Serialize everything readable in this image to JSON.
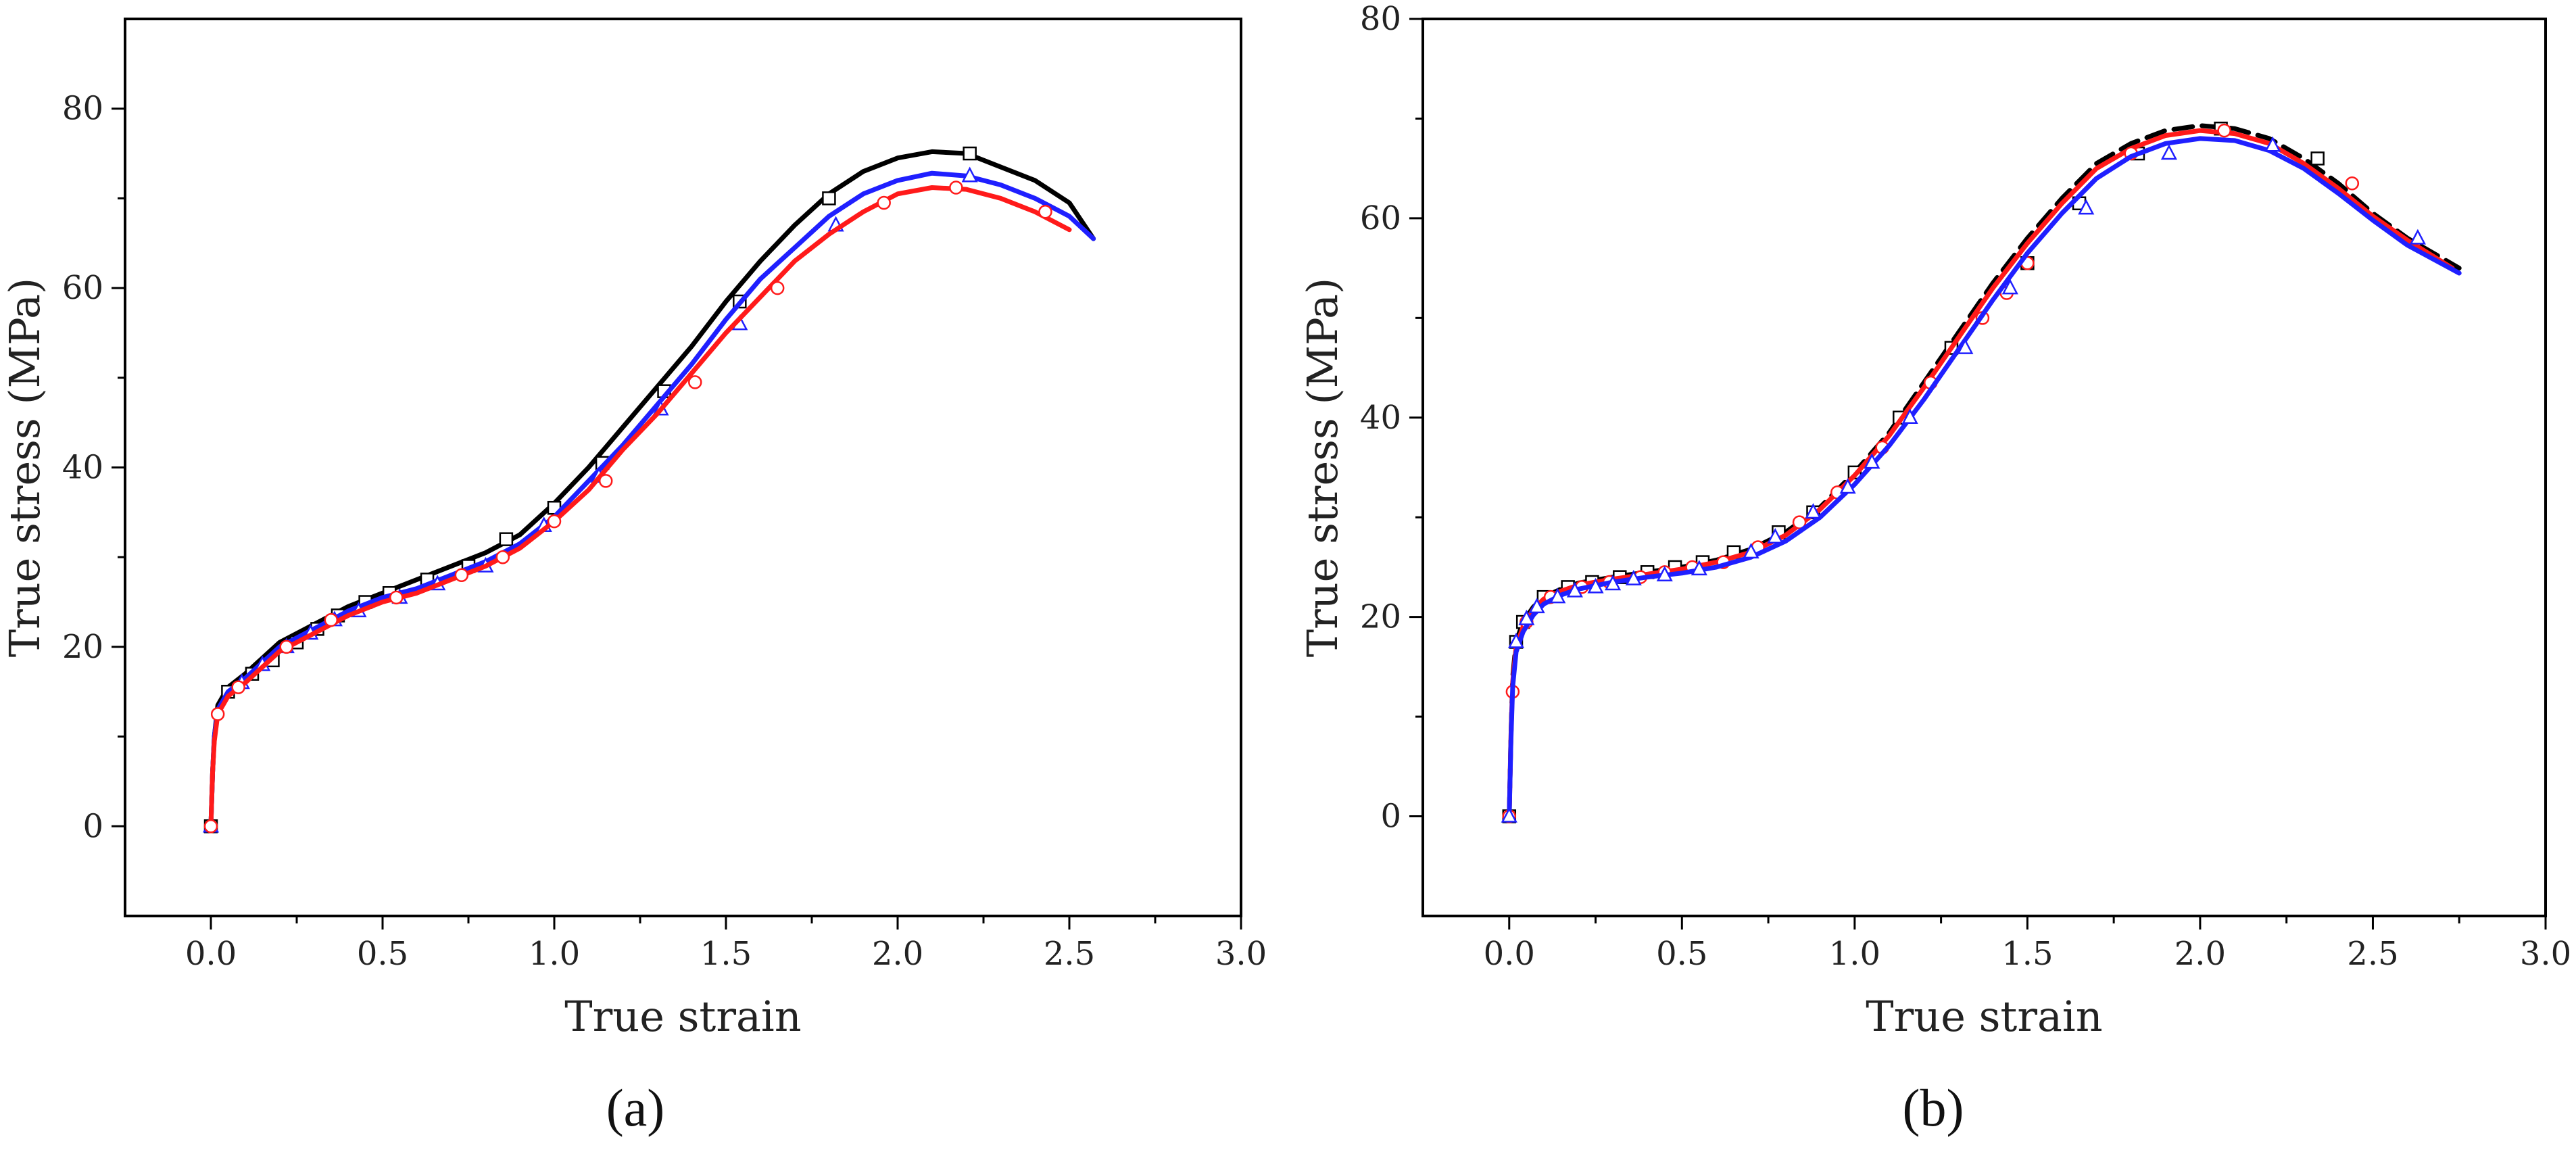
{
  "figure": {
    "panels": [
      "(a)",
      "(b)"
    ]
  },
  "chart_data": [
    {
      "type": "line",
      "panel_label": "(a)",
      "title": "",
      "xlabel": "True strain",
      "ylabel": "True stress  (MPa)",
      "xlim": [
        -0.25,
        3.0
      ],
      "ylim": [
        -10,
        90
      ],
      "xticks": [
        0.0,
        0.5,
        1.0,
        1.5,
        2.0,
        2.5,
        3.0
      ],
      "xtick_labels": [
        "0.0",
        "0.5",
        "1.0",
        "1.5",
        "2.0",
        "2.5",
        "3.0"
      ],
      "yticks": [
        0,
        20,
        40,
        60,
        80
      ],
      "ytick_labels": [
        "0",
        "20",
        "40",
        "60",
        "80"
      ],
      "grid": false,
      "series": [
        {
          "name": "black-square",
          "color": "#000000",
          "marker": "square",
          "dashed": false,
          "x": [
            0.0,
            0.005,
            0.01,
            0.02,
            0.05,
            0.1,
            0.2,
            0.3,
            0.4,
            0.5,
            0.6,
            0.7,
            0.8,
            0.9,
            1.0,
            1.1,
            1.2,
            1.3,
            1.4,
            1.5,
            1.6,
            1.7,
            1.8,
            1.9,
            2.0,
            2.1,
            2.2,
            2.3,
            2.4,
            2.5,
            2.57
          ],
          "y": [
            0,
            6,
            10,
            13.5,
            15.5,
            17,
            20.5,
            22.5,
            24.5,
            26,
            27.5,
            29,
            30.5,
            32.5,
            36,
            40,
            44.5,
            49,
            53.5,
            58.5,
            63,
            67,
            70.5,
            73,
            74.5,
            75.2,
            75,
            73.5,
            72,
            69.5,
            65.5
          ],
          "marker_x": [
            0.0,
            0.05,
            0.12,
            0.18,
            0.25,
            0.31,
            0.37,
            0.45,
            0.52,
            0.63,
            0.75,
            0.86,
            1.0,
            1.14,
            1.32,
            1.54,
            1.8,
            2.21
          ],
          "marker_y": [
            0,
            15,
            17,
            18.5,
            20.5,
            22,
            23.5,
            25,
            26,
            27.5,
            29,
            32,
            35.5,
            40.5,
            48.5,
            58.5,
            70,
            75
          ]
        },
        {
          "name": "blue-triangle",
          "color": "#1f1fff",
          "marker": "triangle",
          "dashed": false,
          "x": [
            0.0,
            0.005,
            0.01,
            0.02,
            0.05,
            0.1,
            0.2,
            0.3,
            0.4,
            0.5,
            0.6,
            0.7,
            0.8,
            0.9,
            1.0,
            1.1,
            1.2,
            1.3,
            1.4,
            1.5,
            1.6,
            1.7,
            1.8,
            1.9,
            2.0,
            2.1,
            2.2,
            2.3,
            2.4,
            2.5,
            2.57
          ],
          "y": [
            0,
            6,
            10,
            13,
            15,
            16.5,
            20,
            22,
            24,
            25.5,
            26.5,
            28,
            29.5,
            31.5,
            34.5,
            38.5,
            42.5,
            47,
            51.5,
            56.5,
            61,
            64.5,
            68,
            70.5,
            72,
            72.8,
            72.5,
            71.5,
            70,
            68,
            65.5
          ],
          "marker_x": [
            0.0,
            0.09,
            0.15,
            0.22,
            0.29,
            0.36,
            0.43,
            0.55,
            0.66,
            0.8,
            0.97,
            1.13,
            1.31,
            1.54,
            1.82,
            2.21
          ],
          "marker_y": [
            0,
            16,
            18,
            20,
            21.5,
            23,
            24,
            25.5,
            27,
            29,
            33.5,
            39,
            46.5,
            56,
            67,
            72.5
          ]
        },
        {
          "name": "red-circle",
          "color": "#ff1a1a",
          "marker": "circle",
          "dashed": false,
          "x": [
            0.0,
            0.005,
            0.01,
            0.02,
            0.05,
            0.1,
            0.2,
            0.3,
            0.4,
            0.5,
            0.6,
            0.7,
            0.8,
            0.9,
            1.0,
            1.1,
            1.2,
            1.3,
            1.4,
            1.5,
            1.6,
            1.7,
            1.8,
            1.9,
            2.0,
            2.1,
            2.2,
            2.3,
            2.4,
            2.5
          ],
          "y": [
            0,
            6,
            9.5,
            12.5,
            14.5,
            16,
            19.5,
            21.5,
            23.5,
            25,
            26,
            27.5,
            29,
            31,
            34,
            37.5,
            42,
            46,
            50.5,
            55,
            59,
            63,
            66,
            68.5,
            70.5,
            71.2,
            71,
            70,
            68.5,
            66.5
          ],
          "marker_x": [
            0.0,
            0.02,
            0.08,
            0.22,
            0.35,
            0.54,
            0.73,
            0.85,
            1.0,
            1.15,
            1.41,
            1.65,
            1.96,
            2.17,
            2.43
          ],
          "marker_y": [
            0,
            12.5,
            15.5,
            20,
            23,
            25.5,
            28,
            30,
            34,
            38.5,
            49.5,
            60,
            69.5,
            71.2,
            68.5
          ]
        }
      ]
    },
    {
      "type": "line",
      "panel_label": "(b)",
      "title": "",
      "xlabel": "True strain",
      "ylabel": "True stress  (MPa)",
      "xlim": [
        -0.25,
        3.0
      ],
      "ylim": [
        -10,
        80
      ],
      "xticks": [
        0.0,
        0.5,
        1.0,
        1.5,
        2.0,
        2.5,
        3.0
      ],
      "xtick_labels": [
        "0.0",
        "0.5",
        "1.0",
        "1.5",
        "2.0",
        "2.5",
        "3.0"
      ],
      "yticks": [
        0,
        20,
        40,
        60,
        80
      ],
      "ytick_labels": [
        "0",
        "20",
        "40",
        "60",
        "80"
      ],
      "grid": false,
      "series": [
        {
          "name": "black-square",
          "color": "#000000",
          "marker": "square",
          "dashed": true,
          "x": [
            0.0,
            0.005,
            0.01,
            0.02,
            0.04,
            0.07,
            0.1,
            0.15,
            0.2,
            0.3,
            0.4,
            0.5,
            0.6,
            0.7,
            0.8,
            0.9,
            1.0,
            1.1,
            1.2,
            1.3,
            1.4,
            1.5,
            1.6,
            1.7,
            1.8,
            1.9,
            2.0,
            2.1,
            2.2,
            2.3,
            2.4,
            2.5,
            2.6,
            2.75
          ],
          "y": [
            0,
            8,
            14,
            17.5,
            19.5,
            21,
            22,
            22.8,
            23.4,
            24,
            24.5,
            25,
            25.7,
            26.8,
            28.5,
            31,
            34.5,
            38.5,
            43.5,
            48.5,
            53.5,
            58,
            62,
            65.5,
            67.5,
            68.8,
            69.3,
            69,
            68,
            66,
            63.5,
            60.5,
            58,
            55
          ],
          "marker_x": [
            0.0,
            0.02,
            0.04,
            0.1,
            0.17,
            0.24,
            0.32,
            0.4,
            0.48,
            0.56,
            0.65,
            0.78,
            0.88,
            1.0,
            1.13,
            1.28,
            1.5,
            1.65,
            1.82,
            2.06,
            2.34
          ],
          "marker_y": [
            0,
            17.5,
            19.5,
            22,
            23,
            23.5,
            24,
            24.5,
            25,
            25.5,
            26.5,
            28.5,
            30.5,
            34.5,
            40,
            47,
            55.5,
            61.5,
            66.5,
            69,
            66
          ]
        },
        {
          "name": "red-circle",
          "color": "#ff1a1a",
          "marker": "circle",
          "dashed": false,
          "x": [
            0.0,
            0.005,
            0.01,
            0.02,
            0.04,
            0.07,
            0.1,
            0.15,
            0.2,
            0.3,
            0.4,
            0.5,
            0.6,
            0.7,
            0.8,
            0.9,
            1.0,
            1.1,
            1.2,
            1.3,
            1.4,
            1.5,
            1.6,
            1.7,
            1.8,
            1.9,
            2.0,
            2.1,
            2.2,
            2.3,
            2.4,
            2.5,
            2.6,
            2.73
          ],
          "y": [
            0,
            8,
            13.5,
            17,
            19,
            20.8,
            21.8,
            22.6,
            23.2,
            23.8,
            24.3,
            24.8,
            25.5,
            26.5,
            28.2,
            30.8,
            34.2,
            38.2,
            43,
            48,
            53,
            57.5,
            61.5,
            65,
            67,
            68.3,
            68.8,
            68.5,
            67.5,
            65.5,
            63,
            60.2,
            57.8,
            55
          ],
          "marker_x": [
            0.0,
            0.01,
            0.05,
            0.12,
            0.21,
            0.29,
            0.38,
            0.45,
            0.53,
            0.62,
            0.72,
            0.84,
            0.95,
            1.08,
            1.22,
            1.37,
            1.44,
            1.5,
            1.8,
            2.07,
            2.44
          ],
          "marker_y": [
            0,
            12.5,
            19.5,
            22,
            23,
            23.5,
            24,
            24.5,
            25,
            25.5,
            27,
            29.5,
            32.5,
            37,
            43.5,
            50,
            52.5,
            55.5,
            66.5,
            68.8,
            63.5
          ]
        },
        {
          "name": "blue-triangle",
          "color": "#1f1fff",
          "marker": "triangle",
          "dashed": false,
          "x": [
            0.0,
            0.005,
            0.01,
            0.02,
            0.04,
            0.07,
            0.1,
            0.15,
            0.2,
            0.3,
            0.4,
            0.5,
            0.6,
            0.7,
            0.8,
            0.9,
            1.0,
            1.1,
            1.2,
            1.3,
            1.4,
            1.5,
            1.6,
            1.7,
            1.8,
            1.9,
            2.0,
            2.1,
            2.2,
            2.3,
            2.4,
            2.5,
            2.6,
            2.75
          ],
          "y": [
            0,
            7.5,
            13,
            16.5,
            18.5,
            20.2,
            21.3,
            22.2,
            22.8,
            23.5,
            24,
            24.4,
            25,
            26,
            27.6,
            30,
            33.3,
            37.2,
            41.8,
            46.8,
            51.8,
            56.5,
            60.5,
            64,
            66.2,
            67.5,
            68,
            67.8,
            66.8,
            65,
            62.5,
            59.8,
            57.3,
            54.5
          ],
          "marker_x": [
            0.0,
            0.02,
            0.05,
            0.08,
            0.14,
            0.19,
            0.25,
            0.3,
            0.36,
            0.45,
            0.55,
            0.7,
            0.77,
            0.88,
            0.98,
            1.05,
            1.16,
            1.32,
            1.45,
            1.67,
            1.91,
            2.21,
            2.63
          ],
          "marker_y": [
            0,
            17.5,
            19.8,
            21,
            22,
            22.6,
            23,
            23.3,
            23.8,
            24.2,
            24.8,
            26.5,
            28,
            30.5,
            33,
            35.5,
            40,
            47,
            53,
            61,
            66.5,
            67.3,
            58
          ]
        }
      ]
    }
  ]
}
